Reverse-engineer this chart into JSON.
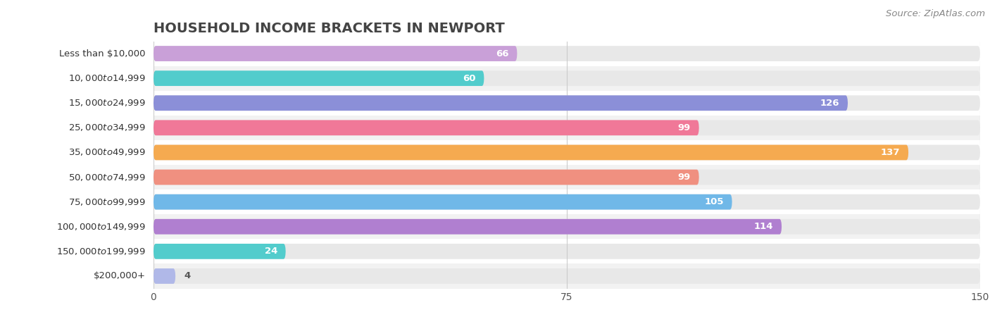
{
  "title": "HOUSEHOLD INCOME BRACKETS IN NEWPORT",
  "source": "Source: ZipAtlas.com",
  "categories": [
    "Less than $10,000",
    "$10,000 to $14,999",
    "$15,000 to $24,999",
    "$25,000 to $34,999",
    "$35,000 to $49,999",
    "$50,000 to $74,999",
    "$75,000 to $99,999",
    "$100,000 to $149,999",
    "$150,000 to $199,999",
    "$200,000+"
  ],
  "values": [
    66,
    60,
    126,
    99,
    137,
    99,
    105,
    114,
    24,
    4
  ],
  "bar_colors": [
    "#c9a0d8",
    "#52cccc",
    "#8b8fd8",
    "#f07898",
    "#f5aa50",
    "#f09080",
    "#70b8e8",
    "#b07fd0",
    "#52cccc",
    "#b0b8e8"
  ],
  "bar_bg_color": "#e8e8e8",
  "xlim": [
    0,
    150
  ],
  "xticks": [
    0,
    75,
    150
  ],
  "title_fontsize": 14,
  "label_fontsize": 9.5,
  "value_fontsize": 9.5,
  "source_fontsize": 9.5,
  "bar_height": 0.62,
  "row_bg_colors": [
    "#ffffff",
    "#f2f2f2"
  ]
}
